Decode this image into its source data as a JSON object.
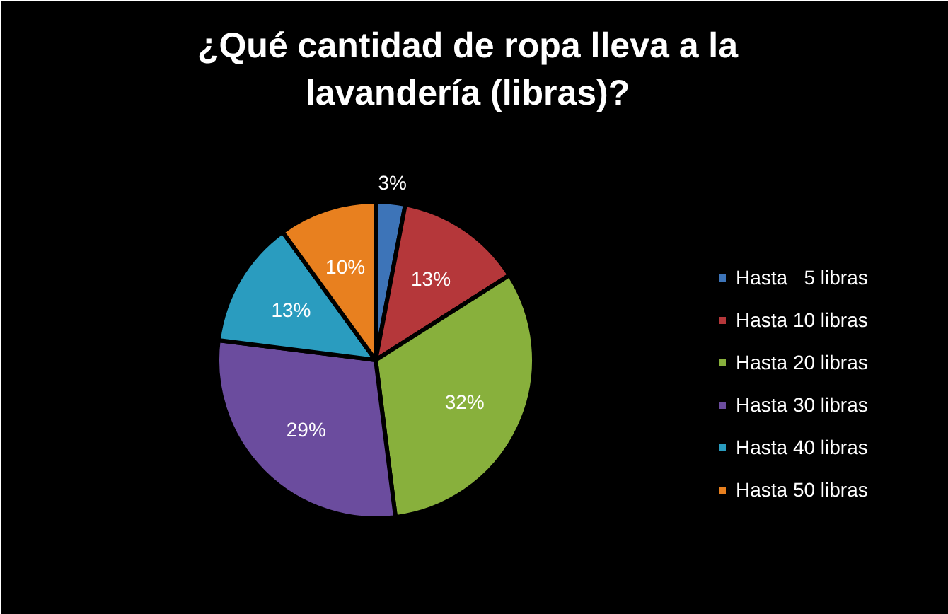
{
  "chart_data": {
    "type": "pie",
    "title": "¿Qué cantidad de ropa lleva a la\nlavandería (libras)?",
    "categories": [
      "Hasta   5 libras",
      "Hasta 10 libras",
      "Hasta 20 libras",
      "Hasta 30 libras",
      "Hasta 40 libras",
      "Hasta 50 libras"
    ],
    "values": [
      3,
      13,
      32,
      29,
      13,
      10
    ],
    "value_labels": [
      "3%",
      "13%",
      "32%",
      "29%",
      "13%",
      "10%"
    ],
    "colors": [
      "#3d74b8",
      "#b5373a",
      "#88b03c",
      "#6b4c9e",
      "#2a9cbf",
      "#e8801f"
    ],
    "legend": "right"
  }
}
